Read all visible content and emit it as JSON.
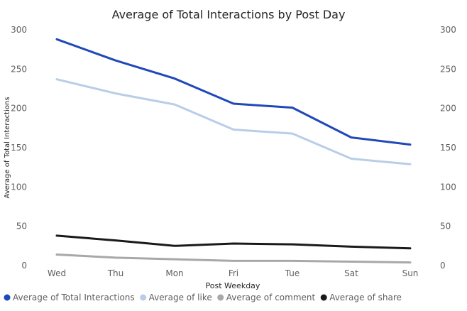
{
  "chart_data": {
    "type": "line",
    "title": "Average of Total Interactions by Post Day",
    "xlabel": "Post Weekday",
    "ylabel": "Average of Total Interactions",
    "categories": [
      "Wed",
      "Thu",
      "Mon",
      "Fri",
      "Tue",
      "Sat",
      "Sun"
    ],
    "ylim": [
      0,
      300
    ],
    "yticks": [
      "0",
      "50",
      "100",
      "150",
      "200",
      "250",
      "300"
    ],
    "secondary_yticks": [
      "0",
      "50",
      "100",
      "150",
      "200",
      "250",
      "300"
    ],
    "grid": false,
    "legend_position": "bottom-left",
    "series": [
      {
        "name": "Average of Total Interactions",
        "color": "#1f49b8",
        "values": [
          288,
          261,
          238,
          206,
          201,
          163,
          154
        ]
      },
      {
        "name": "Average of like",
        "color": "#b9cde8",
        "values": [
          237,
          219,
          205,
          173,
          168,
          136,
          129
        ]
      },
      {
        "name": "Average of comment",
        "color": "#a8a8a8",
        "values": [
          14,
          10,
          8,
          6,
          6,
          5,
          4
        ]
      },
      {
        "name": "Average of share",
        "color": "#1a1a1a",
        "values": [
          38,
          32,
          25,
          28,
          27,
          24,
          22
        ]
      }
    ]
  }
}
